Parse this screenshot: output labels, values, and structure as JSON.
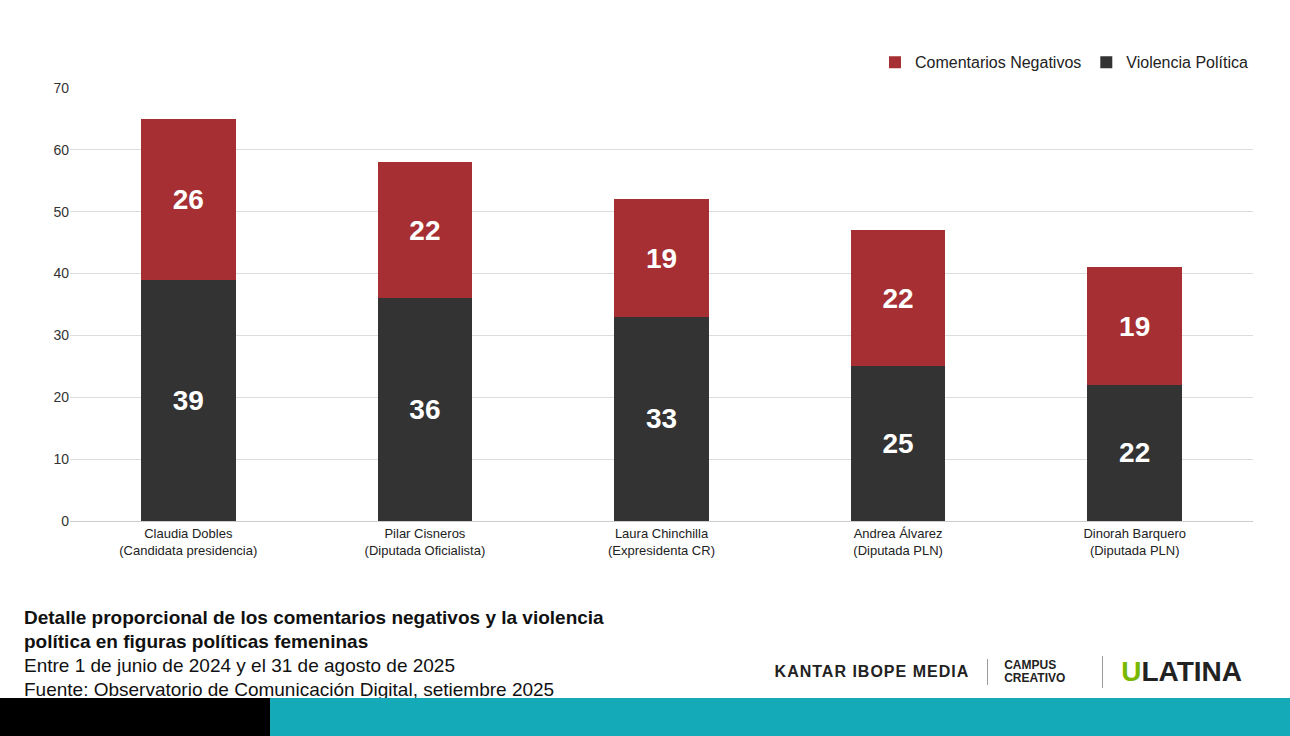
{
  "chart_data": {
    "type": "bar",
    "title": "Detalle proporcional de los comentarios negativos y la violencia política en figuras políticas femeninas",
    "subtitle": "Entre 1 de junio de 2024 y el 31 de agosto de 2025",
    "source": "Fuente: Observatorio de Comunicación Digital, setiembre 2025",
    "annotations": [
      "KANTAR IBOPE MEDIA",
      "CAMPUS CREATIVO",
      "ULATINA"
    ],
    "categories": [
      "Claudia Dobles\n(Candidata presidencia)",
      "Pilar Cisneros\n(Diputada Oficialista)",
      "Laura Chinchilla\n(Expresidenta CR)",
      "Andrea Álvarez\n(Diputada PLN)",
      "Dinorah Barquero\n(Diputada PLN)"
    ],
    "series": [
      {
        "name": "Violencia Política",
        "color": "#333333",
        "values": [
          39,
          36,
          33,
          25,
          22
        ]
      },
      {
        "name": "Comentarios Negativos",
        "color": "#a52f32",
        "values": [
          26,
          22,
          19,
          22,
          19
        ]
      }
    ],
    "ylim": [
      0,
      70
    ],
    "yticks": [
      0,
      10,
      20,
      30,
      40,
      50,
      60,
      70
    ],
    "stacked": true,
    "data_labels": true,
    "grid": true,
    "legend": "top right"
  }
}
